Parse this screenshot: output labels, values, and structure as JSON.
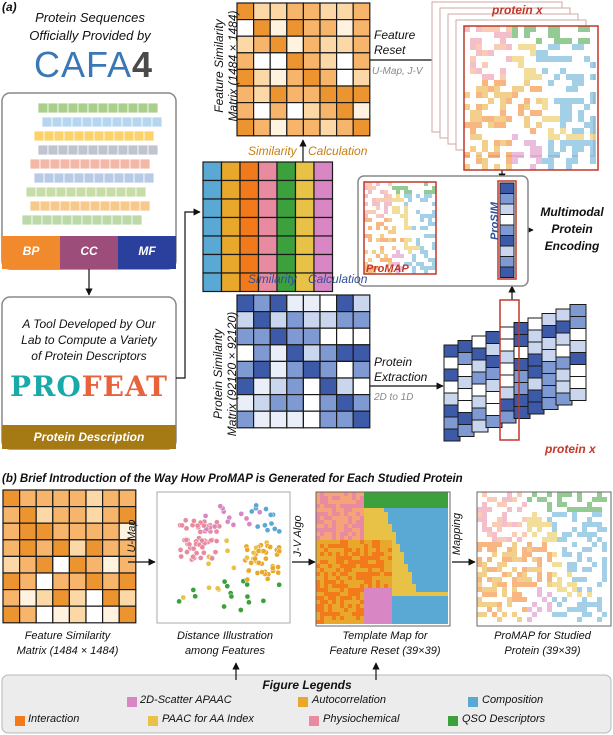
{
  "panel_a": {
    "label": "(a)",
    "cafa_caption": [
      "Protein Sequences",
      "Officially Provided by"
    ],
    "cafa_logo": "CAFA",
    "cafa_logo_num": "4",
    "go_labels": [
      "BP",
      "CC",
      "MF"
    ],
    "profeat_caption": [
      "A Tool Developed by Our",
      "Lab to Compute a Variety",
      "of Protein Descriptors"
    ],
    "profeat_logo_a": "PRO",
    "profeat_logo_b": "FEAT",
    "protein_description": "Protein Description",
    "feature_matrix_label": [
      "Feature Similarity",
      "Matrix (1484 × 1484)"
    ],
    "protein_matrix_label": [
      "Protein Similarity",
      "Matrix (92120 × 92120)"
    ],
    "similarity_calc_1": [
      "Similarity",
      "Calculation"
    ],
    "similarity_calc_2": [
      "Similarity",
      "Calculation"
    ],
    "feature_reset": [
      "Feature",
      "Reset"
    ],
    "feature_reset_sub": "U-Map, J-V",
    "protein_extraction": [
      "Protein",
      "Extraction"
    ],
    "protein_extraction_sub": "2D to 1D",
    "protein_x_top": "protein x",
    "protein_x_bottom": "protein x",
    "promap_label": "ProMAP",
    "prosim_label": "ProSIM",
    "multimodal": [
      "Multimodal",
      "Protein",
      "Encoding"
    ]
  },
  "panel_b": {
    "label": "(b)",
    "title": "Brief Introduction of the Way How ProMAP is Generated for Each Studied Protein",
    "arrow_labels": [
      "U-Map",
      "J-V Algo",
      "Mapping"
    ],
    "captions": [
      [
        "Feature Similarity",
        "Matrix (1484 × 1484)"
      ],
      [
        "Distance Illustration",
        "among Features"
      ],
      [
        "Template Map for",
        "Feature Reset (39×39)"
      ],
      [
        "ProMAP for Studied",
        "Protein (39×39)"
      ]
    ]
  },
  "legend": {
    "title": "Figure Legends",
    "items": [
      {
        "label": "2D-Scatter APAAC",
        "color": "#d987c4"
      },
      {
        "label": "Autocorrelation",
        "color": "#e8a82c"
      },
      {
        "label": "Composition",
        "color": "#5aa9d4"
      },
      {
        "label": "Interaction",
        "color": "#f27a1a"
      },
      {
        "label": "PAAC for AA Index",
        "color": "#e8c247"
      },
      {
        "label": "Physiochemical",
        "color": "#e88aa0"
      },
      {
        "label": "QSO Descriptors",
        "color": "#3ca03c"
      }
    ]
  },
  "colors": {
    "orange_light": "#fbd8a6",
    "orange_mid": "#f6b56a",
    "orange_dark": "#ec9530",
    "blue_light": "#c9d6ee",
    "blue_mid": "#7f99d3",
    "blue_dark": "#3d5aa8",
    "go_bp": "#f08a2c",
    "go_cc": "#9c4d7a",
    "go_mf": "#2b3f9c",
    "brown": "#a57a14",
    "red_frame": "#c0392b"
  }
}
